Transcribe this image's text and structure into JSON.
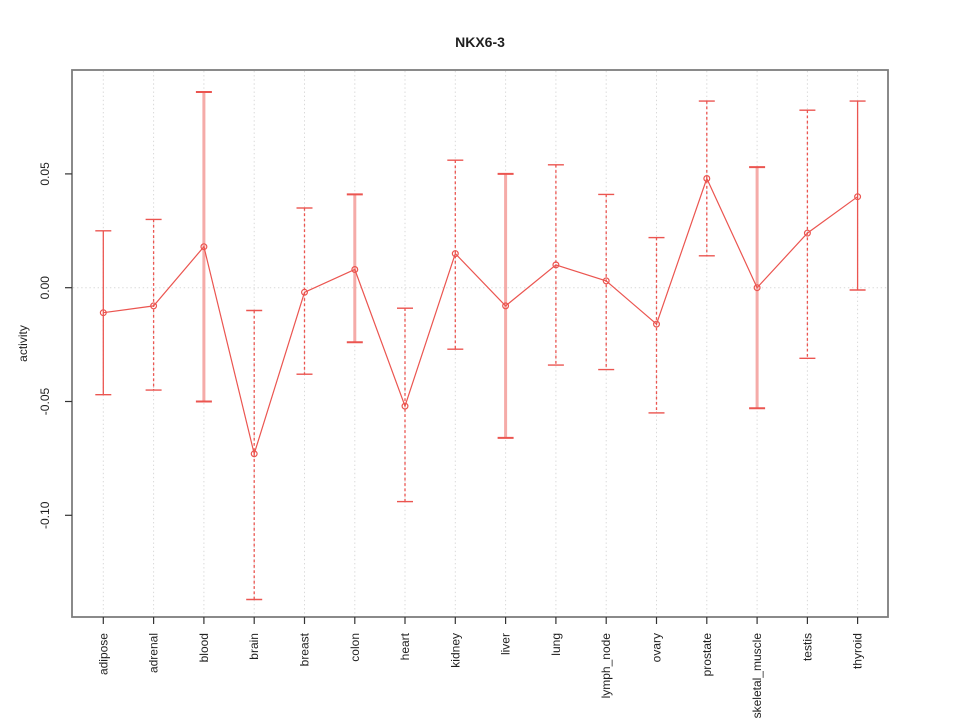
{
  "title": "NKX6-3",
  "ylabel": "activity",
  "chart_data": {
    "type": "line",
    "title": "NKX6-3",
    "xlabel": "",
    "ylabel": "activity",
    "categories": [
      "adipose",
      "adrenal",
      "blood",
      "brain",
      "breast",
      "colon",
      "heart",
      "kidney",
      "liver",
      "lung",
      "lymph_node",
      "ovary",
      "prostate",
      "skeletal_muscle",
      "testis",
      "thyroid"
    ],
    "series": [
      {
        "name": "activity",
        "values": [
          -0.011,
          -0.008,
          0.018,
          -0.073,
          -0.002,
          0.008,
          -0.052,
          0.015,
          -0.008,
          0.01,
          0.003,
          -0.016,
          0.048,
          0.0,
          0.024,
          0.04
        ],
        "upper": [
          0.025,
          0.03,
          0.086,
          -0.01,
          0.035,
          0.041,
          -0.009,
          0.056,
          0.05,
          0.054,
          0.041,
          0.022,
          0.082,
          0.053,
          0.078,
          0.082
        ],
        "lower": [
          -0.047,
          -0.045,
          -0.05,
          -0.137,
          -0.038,
          -0.024,
          -0.094,
          -0.027,
          -0.066,
          -0.034,
          -0.036,
          -0.055,
          0.014,
          -0.053,
          -0.031,
          -0.001
        ]
      }
    ],
    "error_bar_styles": [
      "solid",
      "dotted",
      "thick",
      "dotted",
      "dotted",
      "thick",
      "dotted",
      "dotted",
      "thick",
      "dotted",
      "dotted",
      "dotted",
      "dotted",
      "thick",
      "dotted",
      "solid"
    ],
    "marker": "open-circle",
    "ytick_values": [
      0.05,
      0.0,
      -0.05,
      -0.1
    ],
    "ytick_labels": [
      "0.05",
      "0.00",
      "-0.05",
      "-0.10"
    ],
    "ylim": [
      -0.145,
      0.096
    ],
    "legend": "none",
    "grid": "dotted vertical line per category; dotted horizontal line at y=0",
    "colors": {
      "line": "#eb5550",
      "error_thick": "#f5aba8",
      "grid": "#d9d9d9",
      "box": "#7d7d7d",
      "tick": "#333333",
      "text": "#1f1f1f",
      "background": "#ffffff"
    }
  }
}
